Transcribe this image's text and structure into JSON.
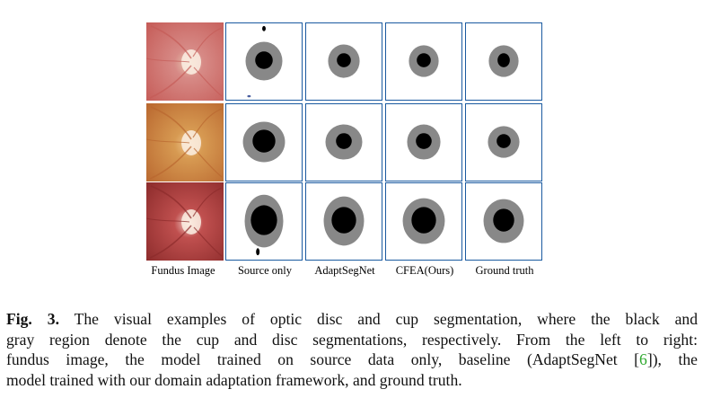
{
  "columns": [
    "Fundus Image",
    "Source only",
    "AdaptSegNet",
    "CFEA(Ours)",
    "Ground truth"
  ],
  "rows": [
    {
      "fundus_palette": [
        "#d78a86",
        "#e8c7b0",
        "#c55b57"
      ],
      "masks": [
        {
          "disc_rx": 21,
          "disc_ry": 22,
          "cup_rx": 10,
          "cup_ry": 10
        },
        {
          "disc_rx": 18,
          "disc_ry": 19,
          "cup_rx": 8,
          "cup_ry": 8
        },
        {
          "disc_rx": 17,
          "disc_ry": 18,
          "cup_rx": 8,
          "cup_ry": 8
        },
        {
          "disc_rx": 17,
          "disc_ry": 18,
          "cup_rx": 7,
          "cup_ry": 8
        }
      ]
    },
    {
      "fundus_palette": [
        "#d79a52",
        "#f0c58b",
        "#b9672f"
      ],
      "masks": [
        {
          "disc_rx": 24,
          "disc_ry": 23,
          "cup_rx": 13,
          "cup_ry": 13
        },
        {
          "disc_rx": 21,
          "disc_ry": 20,
          "cup_rx": 9,
          "cup_ry": 9
        },
        {
          "disc_rx": 19,
          "disc_ry": 20,
          "cup_rx": 9,
          "cup_ry": 9
        },
        {
          "disc_rx": 18,
          "disc_ry": 18,
          "cup_rx": 8,
          "cup_ry": 8
        }
      ]
    },
    {
      "fundus_palette": [
        "#c0504f",
        "#f4d6cf",
        "#8c2b2b"
      ],
      "masks": [
        {
          "disc_rx": 22,
          "disc_ry": 30,
          "cup_rx": 15,
          "cup_ry": 17
        },
        {
          "disc_rx": 23,
          "disc_ry": 28,
          "cup_rx": 14,
          "cup_ry": 15
        },
        {
          "disc_rx": 24,
          "disc_ry": 26,
          "cup_rx": 14,
          "cup_ry": 15
        },
        {
          "disc_rx": 23,
          "disc_ry": 25,
          "cup_rx": 12,
          "cup_ry": 13
        }
      ]
    }
  ],
  "colors": {
    "disc": "#888888",
    "cup": "#000000",
    "cell_border": "#1a5aa0"
  },
  "caption": {
    "label": "Fig. 3.",
    "lines": [
      "The visual examples of optic disc and cup segmentation, where the black and",
      "gray region denote the cup and disc segmentations, respectively. From the left to right:",
      "fundus image, the model trained on source data only, baseline (AdaptSegNet [",
      "6",
      "]), the",
      "model trained with our domain adaptation framework, and ground truth."
    ]
  }
}
